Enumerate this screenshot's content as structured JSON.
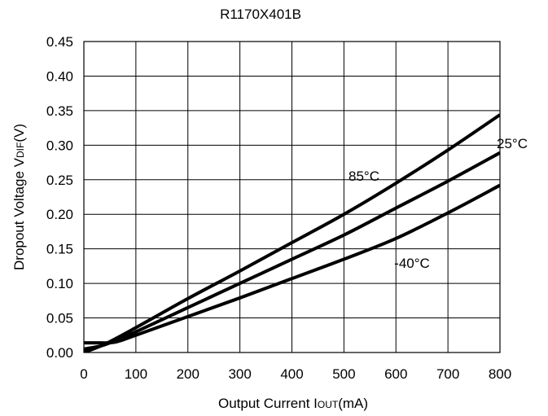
{
  "chart_data": {
    "type": "line",
    "title": "R1170X401B",
    "xlabel": {
      "prefix": "Output Current I",
      "sub": "OUT",
      "suffix": "(mA)"
    },
    "ylabel": {
      "prefix": "Dropout Voltage V",
      "sub": "DIF",
      "suffix": "(V)"
    },
    "xlim": [
      0,
      800
    ],
    "ylim": [
      0,
      0.45
    ],
    "xticks": [
      0,
      100,
      200,
      300,
      400,
      500,
      600,
      700,
      800
    ],
    "yticks": [
      0.0,
      0.05,
      0.1,
      0.15,
      0.2,
      0.25,
      0.3,
      0.35,
      0.4,
      0.45
    ],
    "xtick_labels": [
      "0",
      "100",
      "200",
      "300",
      "400",
      "500",
      "600",
      "700",
      "800"
    ],
    "ytick_labels": [
      "0.00",
      "0.05",
      "0.10",
      "0.15",
      "0.20",
      "0.25",
      "0.30",
      "0.35",
      "0.40",
      "0.45"
    ],
    "grid": true,
    "series": [
      {
        "name": "85°C",
        "color": "#000000",
        "x": [
          0,
          40,
          100,
          200,
          300,
          400,
          500,
          600,
          700,
          800
        ],
        "y": [
          0.0,
          0.012,
          0.036,
          0.078,
          0.118,
          0.159,
          0.2,
          0.245,
          0.293,
          0.344
        ]
      },
      {
        "name": "25°C",
        "color": "#000000",
        "x": [
          0,
          30,
          50,
          100,
          200,
          300,
          400,
          500,
          600,
          700,
          800
        ],
        "y": [
          0.005,
          0.009,
          0.014,
          0.03,
          0.065,
          0.1,
          0.135,
          0.17,
          0.209,
          0.248,
          0.289
        ]
      },
      {
        "name": "-40°C",
        "color": "#000000",
        "x": [
          0,
          25,
          60,
          100,
          200,
          300,
          400,
          500,
          600,
          700,
          800
        ],
        "y": [
          0.014,
          0.014,
          0.015,
          0.025,
          0.052,
          0.079,
          0.107,
          0.135,
          0.165,
          0.202,
          0.242
        ]
      }
    ]
  }
}
